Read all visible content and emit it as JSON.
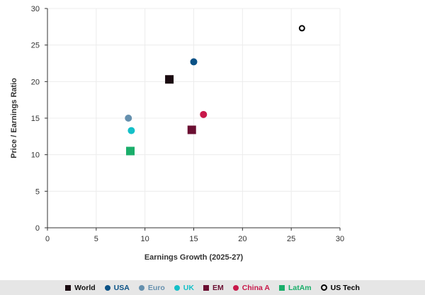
{
  "chart_data": {
    "type": "scatter",
    "xlabel": "Earnings Growth (2025-27)",
    "ylabel": "Price / Earnings Ratio",
    "xlim": [
      0,
      30
    ],
    "ylim": [
      0,
      30
    ],
    "xticks": [
      0,
      5,
      10,
      15,
      20,
      25,
      30
    ],
    "yticks": [
      0,
      5,
      10,
      15,
      20,
      25,
      30
    ],
    "grid": true,
    "legend_position": "bottom",
    "series": [
      {
        "name": "World",
        "x": 12.5,
        "y": 20.3,
        "marker": "square",
        "color": "#1a0a10"
      },
      {
        "name": "USA",
        "x": 15.0,
        "y": 22.7,
        "marker": "circle",
        "color": "#0b5286"
      },
      {
        "name": "Euro",
        "x": 8.3,
        "y": 15.0,
        "marker": "circle",
        "color": "#6590ae"
      },
      {
        "name": "UK",
        "x": 8.6,
        "y": 13.3,
        "marker": "circle",
        "color": "#14c0c8"
      },
      {
        "name": "EM",
        "x": 14.8,
        "y": 13.4,
        "marker": "square",
        "color": "#6b0f32"
      },
      {
        "name": "China A",
        "x": 16.0,
        "y": 15.5,
        "marker": "circle",
        "color": "#c8184a"
      },
      {
        "name": "LatAm",
        "x": 8.5,
        "y": 10.5,
        "marker": "square",
        "color": "#1aae6a"
      },
      {
        "name": "US Tech",
        "x": 26.1,
        "y": 27.3,
        "marker": "open-circle",
        "color": "#000000"
      }
    ]
  }
}
